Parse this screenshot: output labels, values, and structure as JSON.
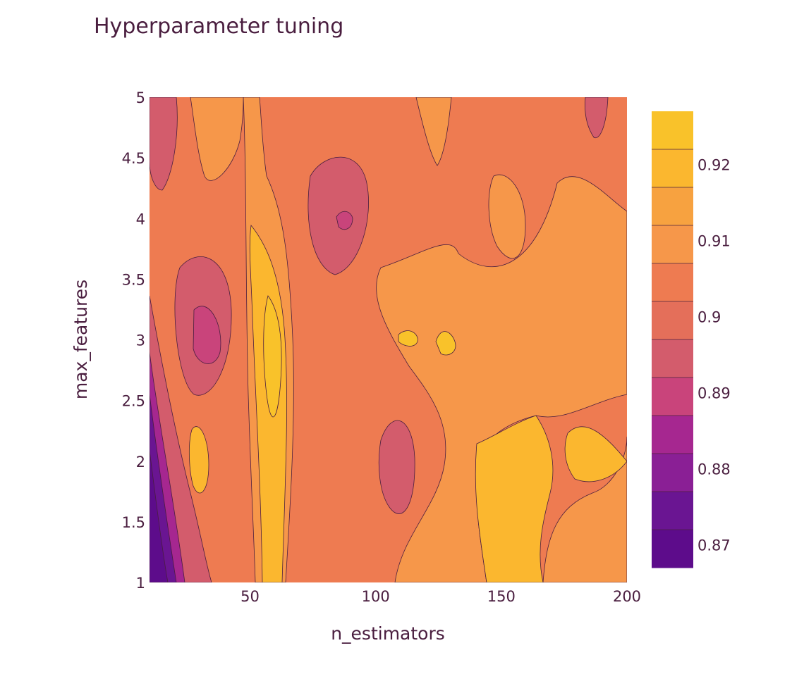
{
  "chart_data": {
    "type": "contour",
    "title": "Hyperparameter tuning",
    "xlabel": "n_estimators",
    "ylabel": "max_features",
    "xlim": [
      10,
      200
    ],
    "ylim": [
      1,
      5
    ],
    "x_ticks": [
      50,
      100,
      150,
      200
    ],
    "y_ticks": [
      1,
      1.5,
      2,
      2.5,
      3,
      3.5,
      4,
      4.5,
      5
    ],
    "x_tick_labels": [
      "50",
      "100",
      "150",
      "200"
    ],
    "y_tick_labels": [
      "1",
      "1.5",
      "2",
      "2.5",
      "3",
      "3.5",
      "4",
      "4.5",
      "5"
    ],
    "z_range": [
      0.867,
      0.927
    ],
    "contour_step": 0.005,
    "colorbar_ticks": [
      0.87,
      0.88,
      0.89,
      0.9,
      0.91,
      0.92
    ],
    "colorbar_tick_labels": [
      "0.87",
      "0.88",
      "0.89",
      "0.9",
      "0.91",
      "0.92"
    ],
    "colorscale": [
      "#5d0c8b",
      "#6a1592",
      "#8a1f95",
      "#a62790",
      "#c9447b",
      "#d35c6c",
      "#e46f5a",
      "#ee7b51",
      "#f6974a",
      "#f7a240",
      "#fbb72f",
      "#f9c22a"
    ],
    "grid": false
  }
}
